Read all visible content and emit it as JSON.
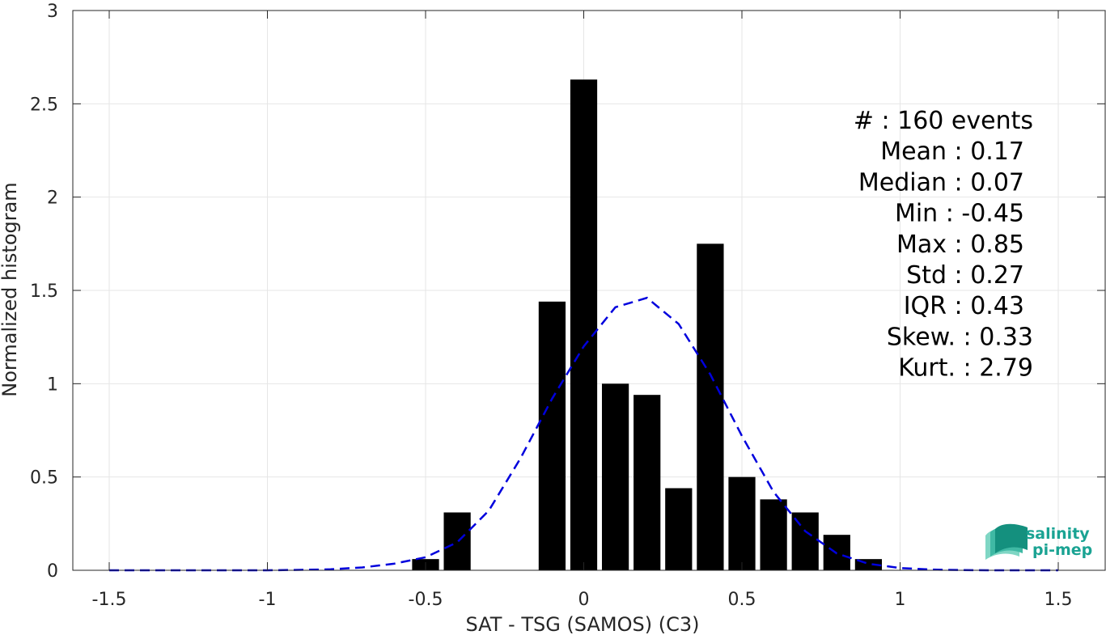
{
  "chart_data": {
    "type": "bar",
    "xlabel": "SAT - TSG (SAMOS) (C3)",
    "ylabel": "Normalized histogram",
    "xlim": [
      -1.5,
      1.5
    ],
    "ylim": [
      0,
      3
    ],
    "xticks": [
      "-1.5",
      "-1",
      "-0.5",
      "0",
      "0.5",
      "1",
      "1.5"
    ],
    "yticks": [
      "0",
      "0.5",
      "1",
      "1.5",
      "2",
      "2.5",
      "3"
    ],
    "grid": true,
    "bin_width": 0.1,
    "bars": {
      "centers": [
        -0.5,
        -0.4,
        -0.1,
        0.0,
        0.1,
        0.2,
        0.3,
        0.4,
        0.5,
        0.6,
        0.7,
        0.8,
        0.9
      ],
      "values": [
        0.06,
        0.31,
        1.44,
        2.63,
        1.0,
        0.94,
        0.44,
        1.75,
        0.5,
        0.38,
        0.31,
        0.19,
        0.06
      ],
      "color": "#000000"
    },
    "fit_curve": {
      "style": "dashed",
      "color": "#0000dd",
      "x": [
        -1.5,
        -1.3,
        -1.1,
        -1.0,
        -0.9,
        -0.8,
        -0.7,
        -0.6,
        -0.5,
        -0.4,
        -0.3,
        -0.2,
        -0.1,
        0.0,
        0.1,
        0.2,
        0.3,
        0.4,
        0.5,
        0.6,
        0.7,
        0.8,
        0.9,
        1.0,
        1.1,
        1.2,
        1.3,
        1.5
      ],
      "y": [
        0.0,
        0.0,
        0.0,
        0.0,
        0.002,
        0.005,
        0.015,
        0.035,
        0.07,
        0.15,
        0.32,
        0.6,
        0.92,
        1.2,
        1.41,
        1.46,
        1.32,
        1.05,
        0.72,
        0.42,
        0.21,
        0.09,
        0.035,
        0.012,
        0.004,
        0.001,
        0.0,
        0.0
      ]
    },
    "stats": [
      {
        "text": "#  : 160 events",
        "anchor": "end",
        "align": "events"
      },
      {
        "text": "Mean : 0.17",
        "anchor": "end"
      },
      {
        "text": "Median : 0.07",
        "anchor": "end"
      },
      {
        "text": "Min : -0.45",
        "anchor": "end"
      },
      {
        "text": "Max : 0.85",
        "anchor": "end"
      },
      {
        "text": "Std : 0.27",
        "anchor": "end"
      },
      {
        "text": "IQR : 0.43",
        "anchor": "end"
      },
      {
        "text": "Skew. : 0.33",
        "anchor": "end",
        "align": "wide"
      },
      {
        "text": "Kurt. : 2.79",
        "anchor": "end",
        "align": "wide"
      }
    ]
  },
  "logo": {
    "line1": "salinity",
    "line2": "pi-mep",
    "colors": [
      "#7fd6c4",
      "#3fb9a4",
      "#14907e"
    ]
  }
}
